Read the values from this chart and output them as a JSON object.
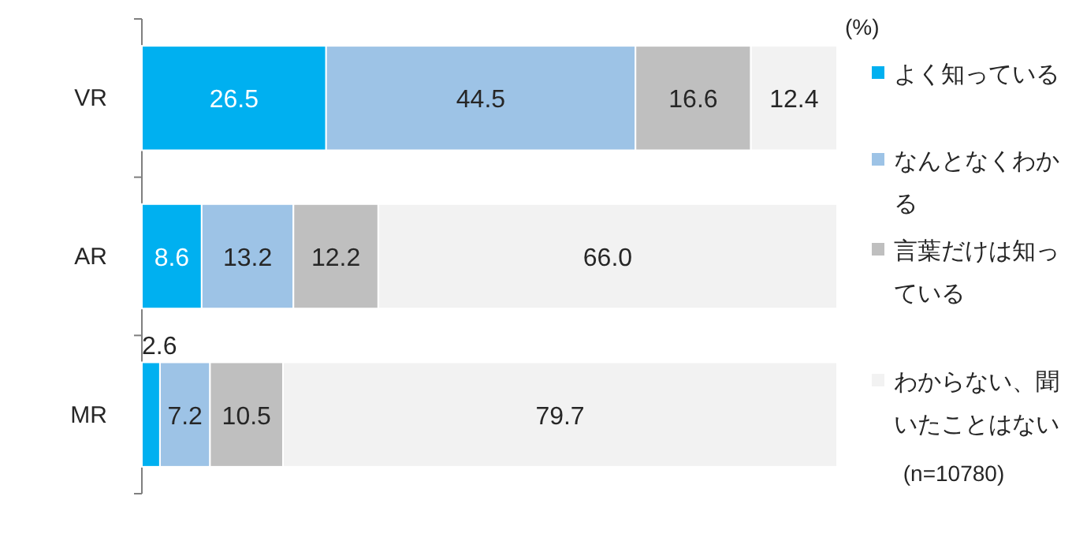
{
  "chart_data": {
    "type": "bar",
    "orientation": "horizontal",
    "stacked": true,
    "categories": [
      "VR",
      "AR",
      "MR"
    ],
    "series": [
      {
        "name": "よく知っている",
        "color": "#00b0f0",
        "values": [
          26.5,
          8.6,
          2.6
        ]
      },
      {
        "name": "なんとなくわかる",
        "color": "#9dc3e6",
        "values": [
          44.5,
          13.2,
          7.2
        ]
      },
      {
        "name": "言葉だけは知っている",
        "color": "#bfbfbf",
        "values": [
          16.6,
          12.2,
          10.5
        ]
      },
      {
        "name": "わからない、聞いたことはない",
        "color": "#f2f2f2",
        "values": [
          12.4,
          66.0,
          79.7
        ],
        "value_labels": [
          "12.4",
          "66.0",
          "79.7"
        ]
      }
    ],
    "xlim": [
      0,
      100
    ],
    "tick_labels": "y",
    "data_labels": true,
    "legend": "right",
    "annotations": [
      "(%)",
      "(n=10780)"
    ]
  }
}
